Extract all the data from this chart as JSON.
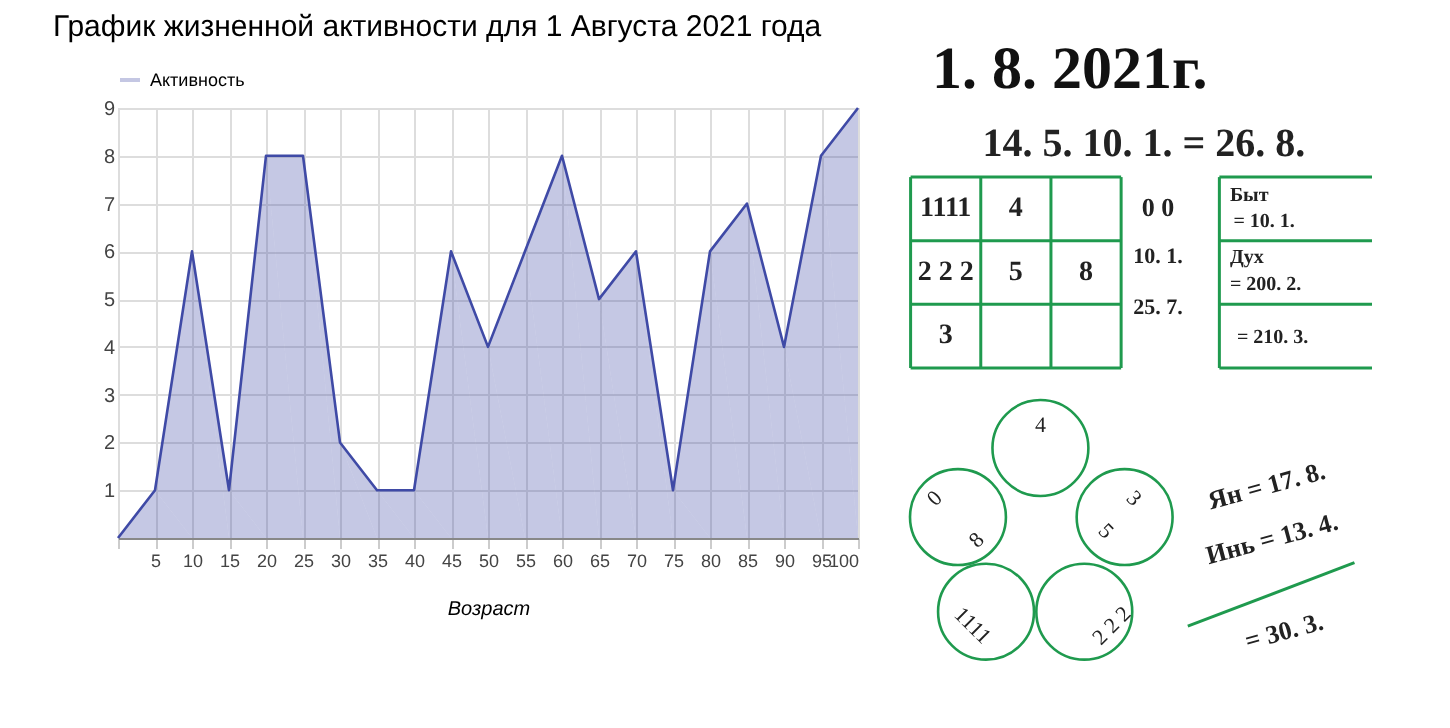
{
  "chart_data": [
    {
      "type": "area",
      "title": "График жизненной активности для 1 Августа 2021 года",
      "xlabel": "Возраст",
      "x": [
        0,
        5,
        10,
        15,
        20,
        25,
        30,
        35,
        40,
        45,
        50,
        55,
        60,
        65,
        70,
        75,
        80,
        85,
        90,
        95,
        100
      ],
      "series": [
        {
          "name": "Активность",
          "color": "#3f4aa6",
          "values": [
            0,
            1,
            6,
            1,
            8,
            8,
            2,
            1,
            1,
            6,
            4,
            6,
            8,
            5,
            6,
            1,
            6,
            7,
            4,
            8,
            9
          ]
        }
      ],
      "xlim": [
        0,
        100
      ],
      "ylim": [
        0,
        9
      ],
      "xticks": [
        {
          "value": 0,
          "label": null
        },
        5,
        10,
        15,
        20,
        25,
        30,
        35,
        40,
        45,
        50,
        55,
        60,
        65,
        70,
        75,
        80,
        85,
        90,
        95,
        100
      ],
      "yticks": [
        {
          "value": 0,
          "label": null
        },
        1,
        2,
        3,
        4,
        5,
        6,
        7,
        8,
        9
      ],
      "grid": true,
      "legend": "top left"
    },
    {
      "type": "other",
      "title": "1. 8. 2021г.",
      "annotations": [
        "14. 5.   10. 1.   =   26. 8.",
        "1111",
        "4",
        "2 2 2",
        "5",
        "8",
        "3",
        "0 0",
        "10. 1.",
        "25. 7.",
        "Быт",
        "= 10. 1.",
        "Дух",
        "= 200. 2.",
        "= 210. 3.",
        "4",
        "0",
        "8",
        "3",
        "5",
        "1111",
        "2 2 2",
        "Ян = 17. 8.",
        "Инь = 13. 4.",
        "= 30. 3."
      ]
    }
  ]
}
